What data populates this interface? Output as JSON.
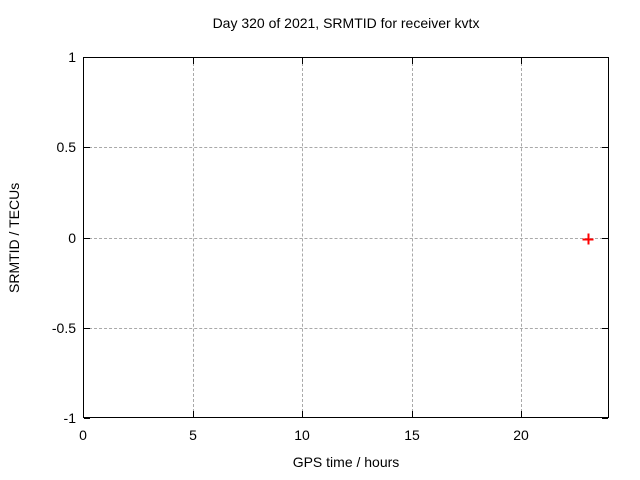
{
  "figure": {
    "title": "Day 320 of 2021, SRMTID for receiver kvtx",
    "xlabel": "GPS time / hours",
    "ylabel": "SRMTID / TECUs"
  },
  "chart_data": {
    "type": "scatter",
    "title": "Day 320 of 2021, SRMTID for receiver kvtx",
    "xlabel": "GPS time / hours",
    "ylabel": "SRMTID / TECUs",
    "xlim": [
      0,
      24
    ],
    "ylim": [
      -1,
      1
    ],
    "grid": true,
    "legend": "none",
    "xticks": [
      {
        "value": 0,
        "label": "0"
      },
      {
        "value": 5,
        "label": "5"
      },
      {
        "value": 10,
        "label": "10"
      },
      {
        "value": 15,
        "label": "15"
      },
      {
        "value": 20,
        "label": "20"
      }
    ],
    "yticks": [
      {
        "value": -1,
        "label": "-1"
      },
      {
        "value": -0.5,
        "label": "-0.5"
      },
      {
        "value": 0,
        "label": "0"
      },
      {
        "value": 0.5,
        "label": "0.5"
      },
      {
        "value": 1,
        "label": "1"
      }
    ],
    "series": [
      {
        "name": "SRMTID",
        "marker": "plus",
        "color": "#ff0000",
        "points": [
          {
            "x": 23,
            "y": 0
          }
        ]
      }
    ]
  },
  "colors": {
    "background": "#ffffff",
    "plot_border": "#000000",
    "grid": "#a9a9a9",
    "text": "#000000",
    "marker": "#ff0000"
  }
}
